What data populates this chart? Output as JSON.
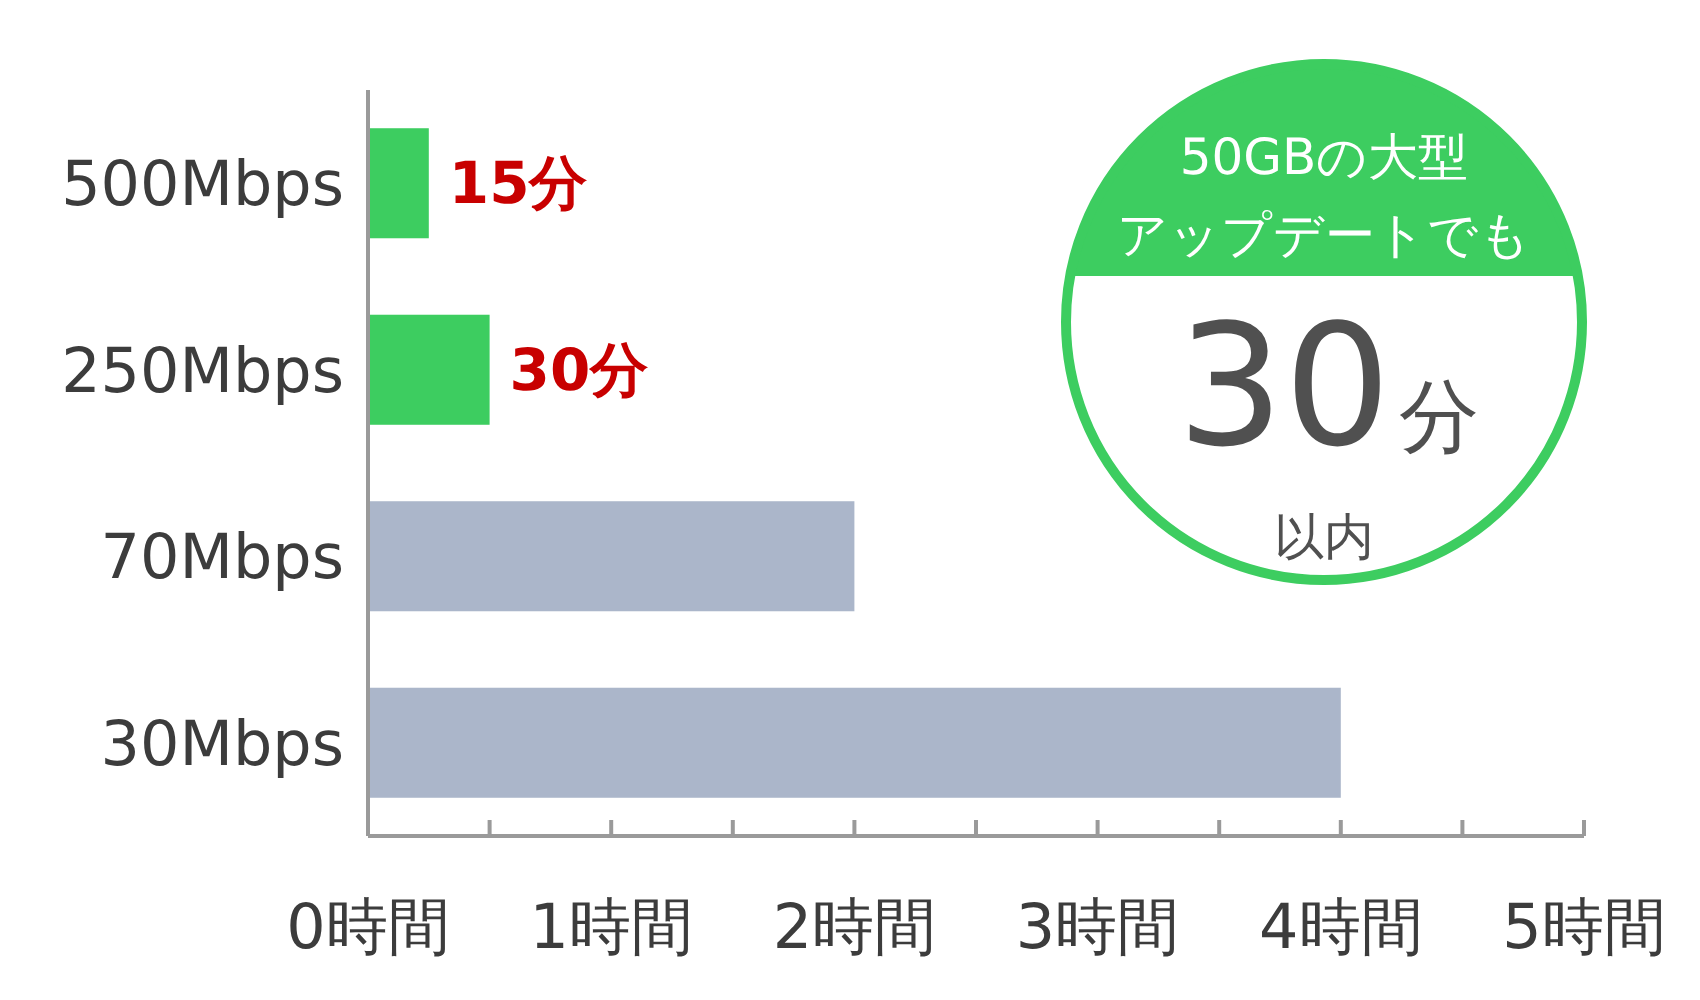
{
  "chart_data": {
    "type": "bar",
    "orientation": "horizontal",
    "categories": [
      "500Mbps",
      "250Mbps",
      "70Mbps",
      "30Mbps"
    ],
    "values": [
      0.25,
      0.5,
      2,
      4
    ],
    "colors": [
      "#3dcd60",
      "#3dcd60",
      "#abb6ca",
      "#abb6ca"
    ],
    "xlim": [
      0,
      5
    ],
    "xticks": [
      {
        "value": 0,
        "label": "0時間"
      },
      {
        "value": 0.5,
        "label": null
      },
      {
        "value": 1,
        "label": "1時間"
      },
      {
        "value": 1.5,
        "label": null
      },
      {
        "value": 2,
        "label": "2時間"
      },
      {
        "value": 2.5,
        "label": null
      },
      {
        "value": 3,
        "label": "3時間"
      },
      {
        "value": 3.5,
        "label": null
      },
      {
        "value": 4,
        "label": "4時間"
      },
      {
        "value": 4.5,
        "label": null
      },
      {
        "value": 5,
        "label": "5時間"
      }
    ],
    "annotations": [
      {
        "text": "15分",
        "x": 0.25,
        "y": "500Mbps"
      },
      {
        "text": "30分",
        "x": 0.5,
        "y": "250Mbps"
      },
      "50GBの大型",
      "アップデートでも",
      "30分",
      "以内"
    ]
  }
}
